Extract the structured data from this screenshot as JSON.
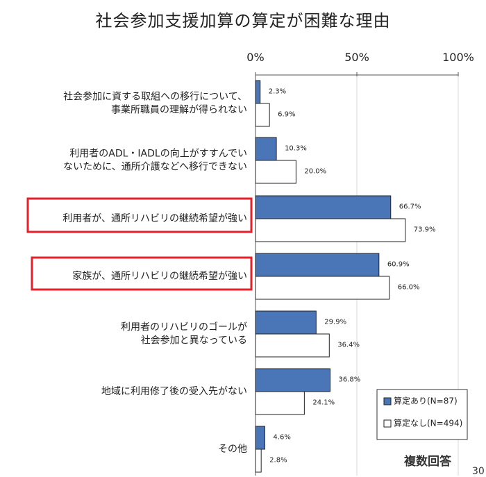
{
  "chart_data": {
    "type": "bar",
    "orientation": "horizontal",
    "title": "社会参加支援加算の算定が困難な理由",
    "x_ticks": [
      "0%",
      "50%",
      "100%"
    ],
    "xlim": [
      0,
      100
    ],
    "categories": [
      [
        "社会参加に資する取組への移行について、",
        "事業所職員の理解が得られない"
      ],
      [
        "利用者のADL・IADLの向上がすすんでい",
        "ないために、通所介護などへ移行できない"
      ],
      [
        "利用者が、通所リハビリの継続希望が強い"
      ],
      [
        "家族が、通所リハビリの継続希望が強い"
      ],
      [
        "利用者のリハビリのゴールが",
        "社会参加と異なっている"
      ],
      [
        "地域に利用修了後の受入先がない"
      ],
      [
        "その他"
      ]
    ],
    "highlighted": [
      2,
      3
    ],
    "series": [
      {
        "name": "算定あり(N=87)",
        "color": "#4a76b8",
        "values": [
          2.3,
          10.3,
          66.7,
          60.9,
          29.9,
          36.8,
          4.6
        ],
        "labels": [
          "2.3%",
          "10.3%",
          "66.7%",
          "60.9%",
          "29.9%",
          "36.8%",
          "4.6%"
        ]
      },
      {
        "name": "算定なし(N=494)",
        "color": "#ffffff",
        "values": [
          6.9,
          20.0,
          73.9,
          66.0,
          36.4,
          24.1,
          2.8
        ],
        "labels": [
          "6.9%",
          "20.0%",
          "73.9%",
          "66.0%",
          "36.4%",
          "24.1%",
          "2.8%"
        ]
      }
    ],
    "legend_position": "bottom-right",
    "note": "複数回答",
    "highlight_color": "#e8202a"
  },
  "page_number": "30"
}
